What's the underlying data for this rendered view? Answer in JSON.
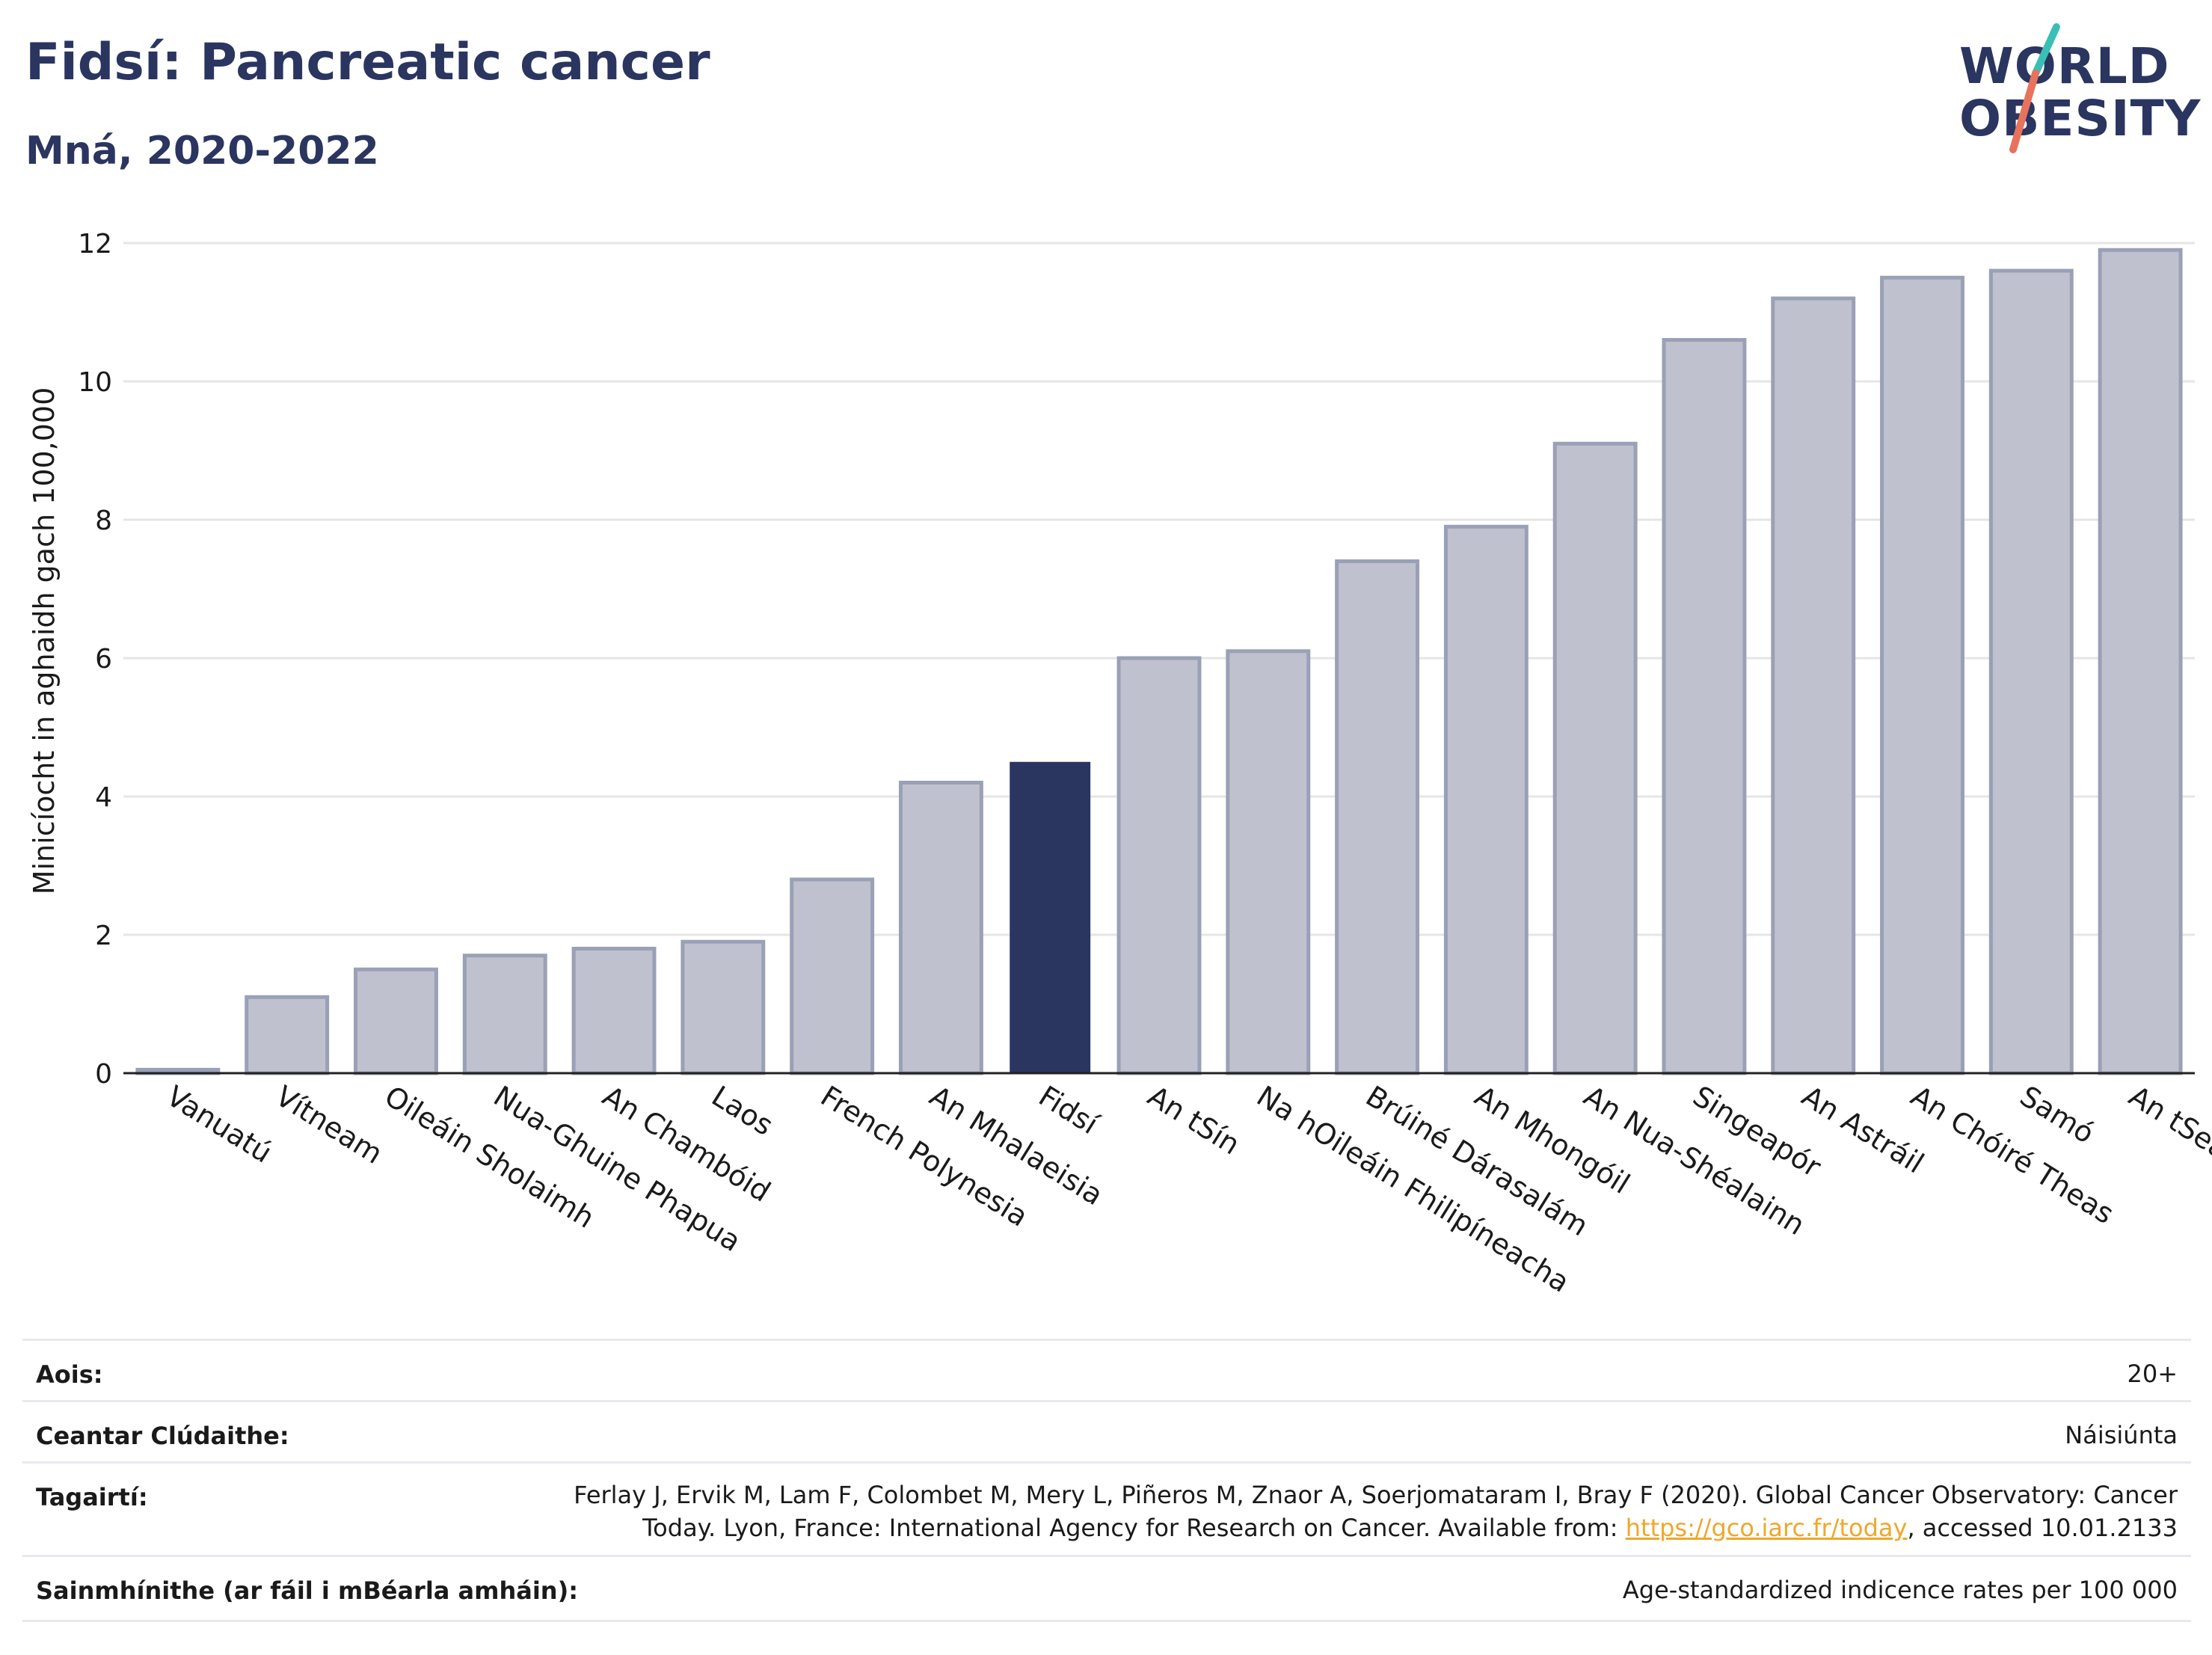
{
  "header": {
    "title": "Fidsí: Pancreatic cancer",
    "subtitle": "Mná, 2020-2022"
  },
  "logo": {
    "line1": "WORLD",
    "line2": "OBESITY",
    "colors": {
      "navy": "#2a3560",
      "teal": "#3bbfb4",
      "coral": "#e8735c"
    }
  },
  "colors": {
    "highlight": "#2a3560",
    "bar_fill": "#bfc2ce",
    "bar_stroke": "#9aa0b6",
    "grid": "#e6e6e6"
  },
  "chart_data": {
    "type": "bar",
    "ylabel": "Minicíocht in aghaidh gach 100,000",
    "xlabel": "",
    "ylim": [
      0,
      12
    ],
    "yticks": [
      0,
      2,
      4,
      6,
      8,
      10,
      12
    ],
    "grid": true,
    "highlight": "Fidsí",
    "categories": [
      "Vanuatú",
      "Vítneam",
      "Oileáin Sholaimh",
      "Nua-Ghuine Phapua",
      "An Chambóid",
      "Laos",
      "French Polynesia",
      "An Mhalaeisia",
      "Fidsí",
      "An tSín",
      "Na hOileáin Fhilipíneacha",
      "Brúiné Dárasalám",
      "An Mhongóil",
      "An Nua-Shéalainn",
      "Singeapór",
      "An Astráil",
      "An Chóiré Theas",
      "Samó",
      "An tSeapáin"
    ],
    "values": [
      0.05,
      1.1,
      1.5,
      1.7,
      1.8,
      1.9,
      2.8,
      4.2,
      4.5,
      6.0,
      6.1,
      7.4,
      7.9,
      9.1,
      10.6,
      11.2,
      11.5,
      11.6,
      11.9
    ]
  },
  "footer": {
    "rows": [
      {
        "label": "Aois:",
        "value": "20+"
      },
      {
        "label": "Ceantar Clúdaithe:",
        "value": "Náisiúnta"
      },
      {
        "label": "Tagairtí:",
        "value_line1": "Ferlay J, Ervik M, Lam F, Colombet M, Mery L, Piñeros M, Znaor A, Soerjomataram I, Bray F (2020). Global Cancer Observatory: Cancer",
        "value_line2_pre": "Today. Lyon, France: International Agency for Research on Cancer. Available from: ",
        "value_link": "https://gco.iarc.fr/today",
        "value_line2_post": ", accessed 10.01.2133"
      },
      {
        "label": "Sainmhínithe (ar fáil i mBéarla amháin):",
        "value": "Age-standardized indicence rates per 100 000"
      }
    ]
  }
}
